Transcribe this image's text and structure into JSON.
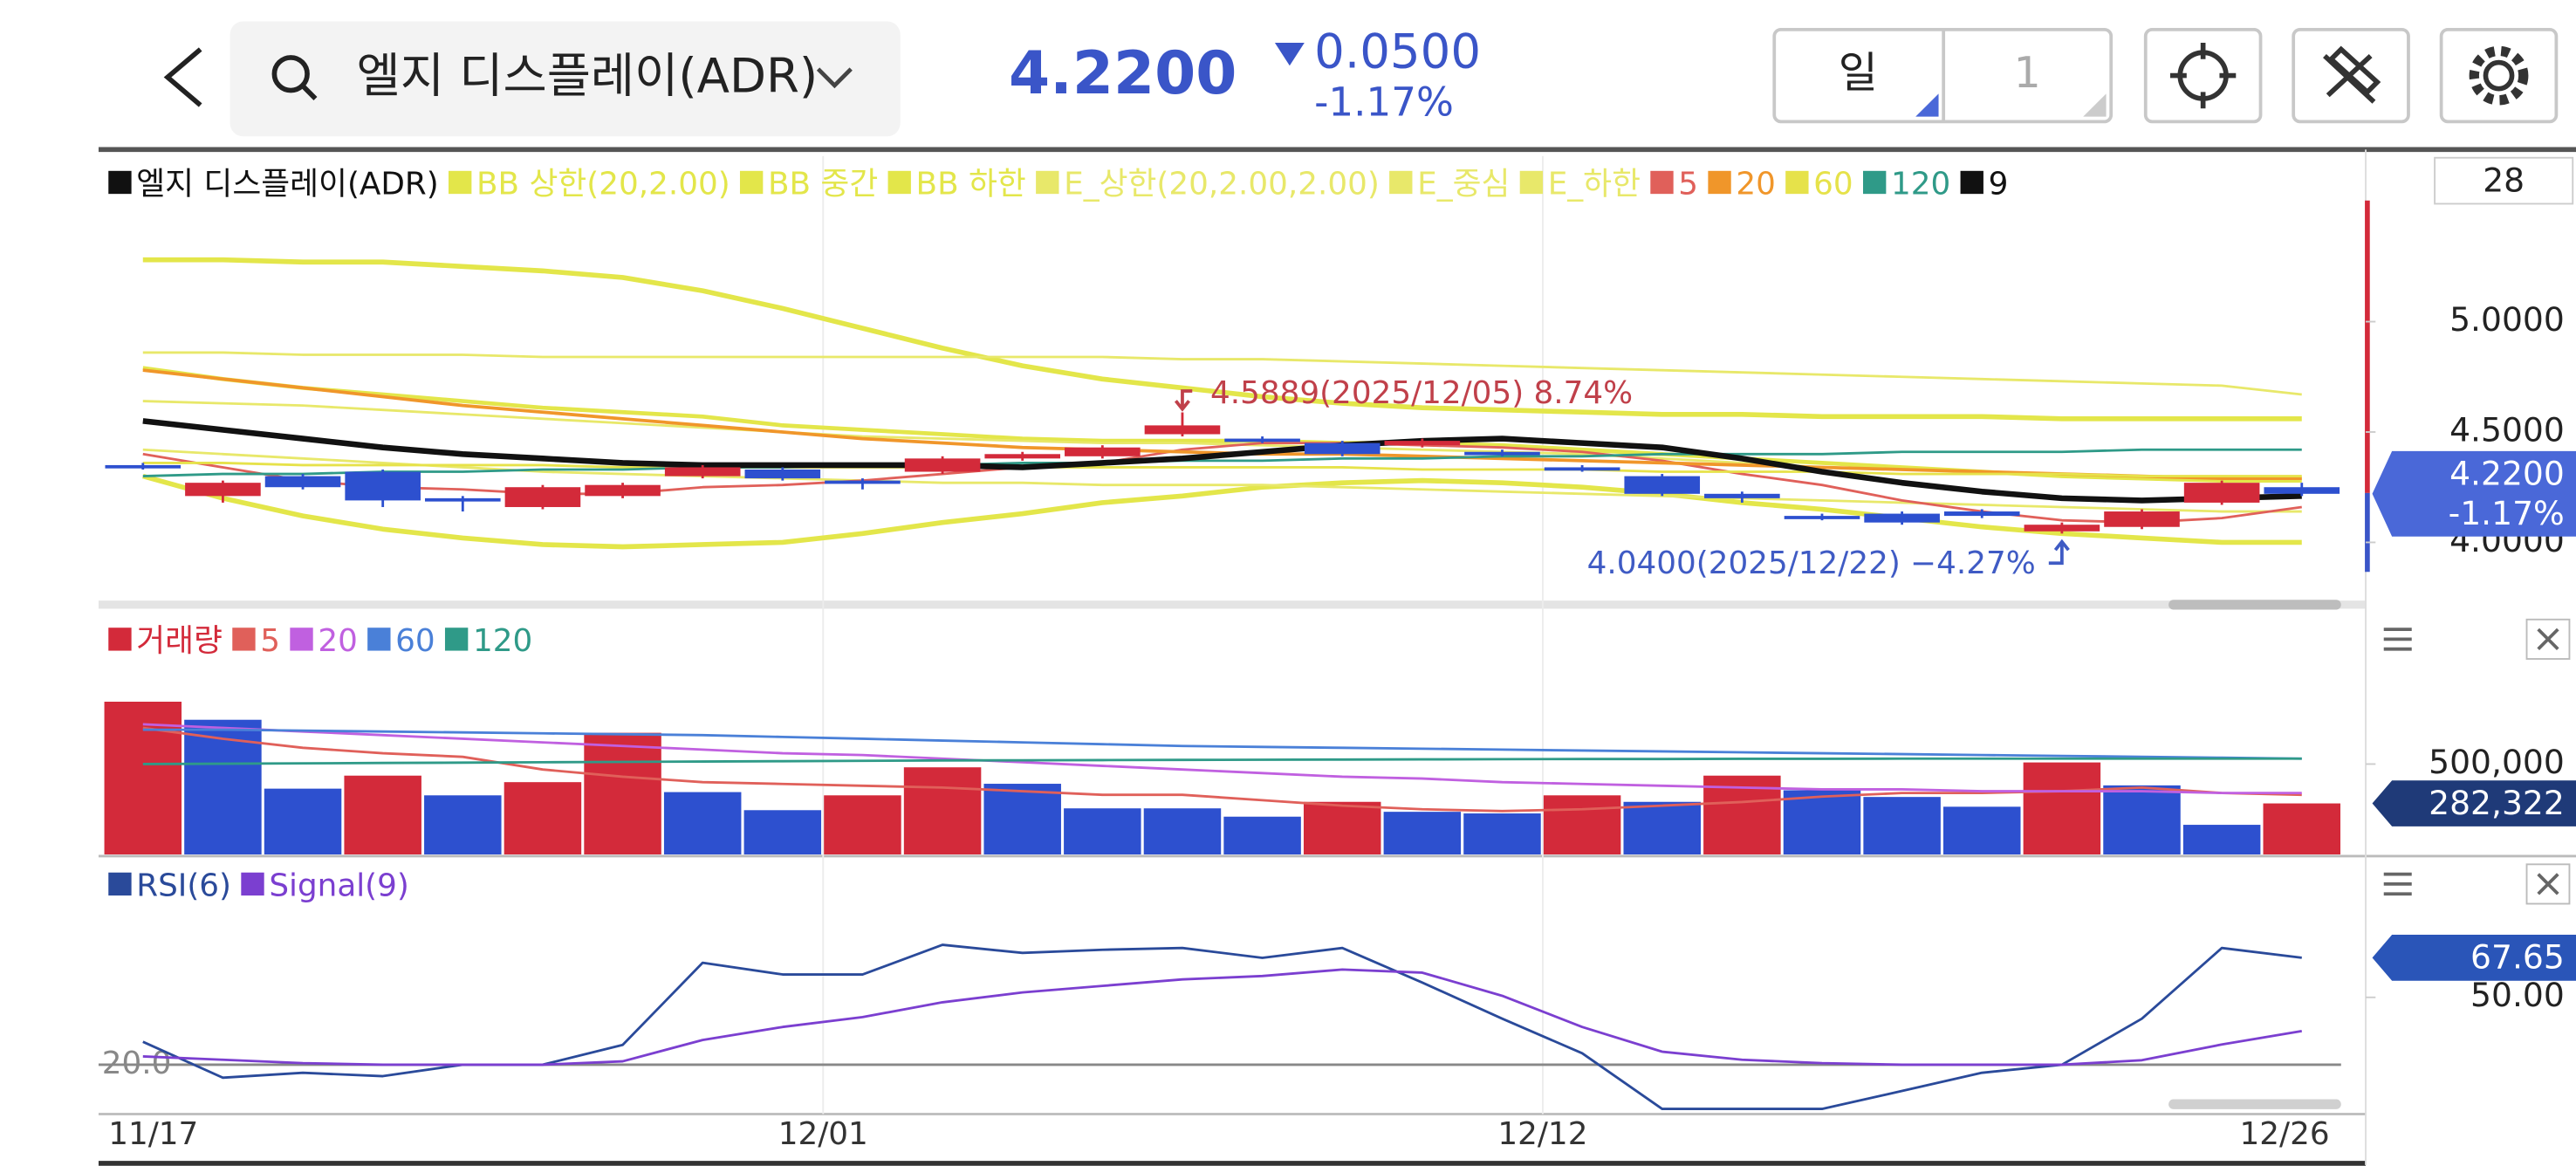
{
  "header": {
    "title": "엘지 디스플레이(ADR)",
    "price": "4.2200",
    "change": "0.0500",
    "change_pct": "-1.17%",
    "period": "일",
    "period_count": "1"
  },
  "count_label": "28",
  "chart_data": [
    {
      "type": "candlestick",
      "candles": {
        "name": "엘지 디스플레이(ADR)",
        "color": "#111111",
        "up_color": "#d32a3a",
        "down_color": "#2d50cf",
        "open": [
          4.35,
          4.21,
          4.3,
          4.32,
          4.2,
          4.16,
          4.21,
          4.3,
          4.33,
          4.28,
          4.32,
          4.38,
          4.39,
          4.49,
          4.47,
          4.45,
          4.44,
          4.41,
          4.34,
          4.3,
          4.22,
          4.12,
          4.13,
          4.14,
          4.05,
          4.07,
          4.18,
          4.25
        ],
        "high": [
          4.36,
          4.28,
          4.31,
          4.33,
          4.21,
          4.26,
          4.27,
          4.35,
          4.34,
          4.29,
          4.39,
          4.41,
          4.44,
          4.5889,
          4.48,
          4.46,
          4.47,
          4.42,
          4.35,
          4.31,
          4.23,
          4.13,
          4.14,
          4.15,
          4.09,
          4.15,
          4.28,
          4.27
        ],
        "low": [
          4.33,
          4.18,
          4.24,
          4.16,
          4.14,
          4.15,
          4.2,
          4.29,
          4.28,
          4.24,
          4.31,
          4.37,
          4.38,
          4.48,
          4.45,
          4.39,
          4.43,
          4.39,
          4.32,
          4.21,
          4.18,
          4.1,
          4.08,
          4.11,
          4.04,
          4.06,
          4.17,
          4.21
        ],
        "close": [
          4.34,
          4.27,
          4.25,
          4.19,
          4.19,
          4.25,
          4.26,
          4.34,
          4.29,
          4.27,
          4.38,
          4.4,
          4.43,
          4.53,
          4.46,
          4.4,
          4.46,
          4.4,
          4.33,
          4.22,
          4.2,
          4.11,
          4.09,
          4.12,
          4.08,
          4.14,
          4.27,
          4.22
        ]
      },
      "series": [
        {
          "name": "BB 상한(20,2.00)",
          "color": "#e3e64a",
          "line_width": 3,
          "values": [
            5.28,
            5.28,
            5.27,
            5.27,
            5.25,
            5.23,
            5.2,
            5.14,
            5.06,
            4.97,
            4.88,
            4.8,
            4.74,
            4.7,
            4.66,
            4.63,
            4.61,
            4.6,
            4.59,
            4.58,
            4.58,
            4.57,
            4.57,
            4.57,
            4.56,
            4.56,
            4.56,
            4.56
          ]
        },
        {
          "name": "BB 중간",
          "color": "#e3e64a",
          "line_width": 2.5,
          "values": [
            4.79,
            4.74,
            4.7,
            4.67,
            4.64,
            4.61,
            4.59,
            4.57,
            4.53,
            4.51,
            4.49,
            4.47,
            4.46,
            4.46,
            4.46,
            4.45,
            4.45,
            4.44,
            4.42,
            4.4,
            4.38,
            4.36,
            4.34,
            4.32,
            4.3,
            4.29,
            4.28,
            4.28
          ]
        },
        {
          "name": "BB 하한",
          "color": "#e3e64a",
          "line_width": 3,
          "values": [
            4.3,
            4.2,
            4.12,
            4.06,
            4.02,
            3.99,
            3.98,
            3.99,
            4.0,
            4.04,
            4.09,
            4.13,
            4.18,
            4.21,
            4.25,
            4.27,
            4.28,
            4.27,
            4.25,
            4.22,
            4.18,
            4.15,
            4.11,
            4.07,
            4.04,
            4.02,
            4.0,
            4.0
          ]
        },
        {
          "name": "E_상한(20,2.00,2.00)",
          "color": "#e8e86a",
          "values": [
            4.86,
            4.86,
            4.85,
            4.85,
            4.85,
            4.84,
            4.84,
            4.84,
            4.84,
            4.84,
            4.84,
            4.84,
            4.84,
            4.83,
            4.83,
            4.82,
            4.81,
            4.8,
            4.79,
            4.78,
            4.77,
            4.76,
            4.75,
            4.74,
            4.73,
            4.72,
            4.71,
            4.67
          ]
        },
        {
          "name": "E_중심",
          "color": "#e8e86a",
          "values": [
            4.64,
            4.63,
            4.62,
            4.6,
            4.58,
            4.56,
            4.54,
            4.52,
            4.5,
            4.48,
            4.47,
            4.46,
            4.45,
            4.45,
            4.44,
            4.43,
            4.42,
            4.41,
            4.4,
            4.38,
            4.36,
            4.34,
            4.33,
            4.32,
            4.31,
            4.3,
            4.29,
            4.29
          ]
        },
        {
          "name": "E_하한",
          "color": "#e8e86a",
          "values": [
            4.42,
            4.4,
            4.38,
            4.36,
            4.34,
            4.32,
            4.31,
            4.3,
            4.29,
            4.28,
            4.27,
            4.27,
            4.26,
            4.26,
            4.26,
            4.25,
            4.24,
            4.23,
            4.22,
            4.21,
            4.2,
            4.19,
            4.18,
            4.17,
            4.16,
            4.15,
            4.14,
            4.14
          ]
        },
        {
          "name": "5",
          "color": "#e0605a",
          "values": [
            4.4,
            4.34,
            4.28,
            4.25,
            4.24,
            4.22,
            4.22,
            4.25,
            4.26,
            4.28,
            4.31,
            4.34,
            4.36,
            4.42,
            4.45,
            4.45,
            4.44,
            4.43,
            4.41,
            4.37,
            4.31,
            4.26,
            4.19,
            4.14,
            4.1,
            4.09,
            4.11,
            4.16
          ]
        },
        {
          "name": "20",
          "color": "#f0962a",
          "line_width": 2,
          "values": [
            4.78,
            4.74,
            4.7,
            4.66,
            4.62,
            4.59,
            4.56,
            4.53,
            4.5,
            4.47,
            4.45,
            4.43,
            4.42,
            4.41,
            4.4,
            4.4,
            4.39,
            4.38,
            4.37,
            4.36,
            4.35,
            4.34,
            4.33,
            4.32,
            4.31,
            4.3,
            4.29,
            4.29
          ]
        },
        {
          "name": "60",
          "color": "#e6e24a",
          "values": [
            4.36,
            4.36,
            4.35,
            4.35,
            4.35,
            4.35,
            4.34,
            4.34,
            4.34,
            4.34,
            4.34,
            4.34,
            4.34,
            4.34,
            4.34,
            4.34,
            4.33,
            4.33,
            4.33,
            4.32,
            4.32,
            4.32,
            4.31,
            4.31,
            4.31,
            4.3,
            4.3,
            4.3
          ]
        },
        {
          "name": "120",
          "color": "#2f9a88",
          "values": [
            4.3,
            4.31,
            4.31,
            4.32,
            4.32,
            4.33,
            4.33,
            4.34,
            4.34,
            4.35,
            4.35,
            4.36,
            4.36,
            4.37,
            4.37,
            4.38,
            4.38,
            4.39,
            4.39,
            4.4,
            4.4,
            4.4,
            4.41,
            4.41,
            4.41,
            4.42,
            4.42,
            4.42
          ]
        },
        {
          "name": "9",
          "color": "#111111",
          "line_width": 3.5,
          "values": [
            4.55,
            4.51,
            4.47,
            4.43,
            4.4,
            4.38,
            4.36,
            4.35,
            4.35,
            4.35,
            4.35,
            4.34,
            4.36,
            4.38,
            4.41,
            4.44,
            4.46,
            4.47,
            4.45,
            4.43,
            4.38,
            4.32,
            4.27,
            4.23,
            4.2,
            4.19,
            4.2,
            4.21
          ]
        }
      ],
      "annotations": [
        {
          "text": "4.5889(2025/12/05) 8.74%",
          "value": 4.5889,
          "color": "#c0404a"
        },
        {
          "text": "4.0400(2025/12/22) −4.27%",
          "value": 4.04,
          "color": "#3f5bc4"
        }
      ],
      "ylim": [
        3.74,
        5.75
      ],
      "yticks": [
        {
          "value": 4,
          "label": "4.0000"
        },
        {
          "value": 4.5,
          "label": "4.5000"
        },
        {
          "value": 5,
          "label": "5.0000"
        }
      ],
      "current_value": 4.22,
      "current_label": "4.2200",
      "current_change": "-1.17%",
      "current_color": "#4a68d8"
    },
    {
      "type": "bar",
      "name": "거래량",
      "color": "#d32a3a",
      "values": [
        845000,
        745000,
        364000,
        436000,
        327000,
        400000,
        673000,
        345000,
        245000,
        327000,
        482000,
        391000,
        255000,
        255000,
        209000,
        291000,
        236000,
        227000,
        327000,
        291000,
        436000,
        355000,
        318000,
        264000,
        509000,
        382000,
        164000,
        282322
      ],
      "bar_colors": [
        "#d32a3a",
        "#2d50cf",
        "#2d50cf",
        "#d32a3a",
        "#2d50cf",
        "#d32a3a",
        "#d32a3a",
        "#2d50cf",
        "#2d50cf",
        "#d32a3a",
        "#d32a3a",
        "#2d50cf",
        "#2d50cf",
        "#2d50cf",
        "#2d50cf",
        "#d32a3a",
        "#2d50cf",
        "#2d50cf",
        "#d32a3a",
        "#2d50cf",
        "#d32a3a",
        "#2d50cf",
        "#2d50cf",
        "#2d50cf",
        "#d32a3a",
        "#2d50cf",
        "#2d50cf",
        "#d32a3a"
      ],
      "series": [
        {
          "name": "5",
          "color": "#e0605a",
          "values": [
            700000,
            640000,
            590000,
            560000,
            540000,
            470000,
            430000,
            400000,
            390000,
            380000,
            370000,
            350000,
            330000,
            330000,
            300000,
            270000,
            250000,
            240000,
            250000,
            270000,
            290000,
            320000,
            340000,
            340000,
            350000,
            370000,
            340000,
            330000
          ]
        },
        {
          "name": "20",
          "color": "#c060e0",
          "values": [
            720000,
            700000,
            680000,
            660000,
            640000,
            620000,
            600000,
            580000,
            560000,
            550000,
            530000,
            510000,
            490000,
            470000,
            450000,
            430000,
            420000,
            400000,
            390000,
            380000,
            370000,
            360000,
            360000,
            350000,
            350000,
            350000,
            340000,
            340000
          ]
        },
        {
          "name": "60",
          "color": "#4a80d8",
          "values": [
            690000,
            690000,
            685000,
            680000,
            675000,
            670000,
            665000,
            660000,
            650000,
            640000,
            630000,
            620000,
            610000,
            600000,
            595000,
            590000,
            585000,
            580000,
            575000,
            570000,
            565000,
            560000,
            555000,
            550000,
            545000,
            540000,
            535000,
            530000
          ]
        },
        {
          "name": "120",
          "color": "#2f9a88",
          "values": [
            500000,
            502000,
            504000,
            506000,
            508000,
            510000,
            512000,
            514000,
            516000,
            518000,
            520000,
            521000,
            522000,
            523000,
            524000,
            525000,
            526000,
            527000,
            528000,
            528000,
            529000,
            529000,
            530000,
            530000,
            530000,
            530000,
            530000,
            530000
          ]
        }
      ],
      "ylim": [
        0,
        1318000
      ],
      "yticks": [
        {
          "value": 500000,
          "label": "500,000"
        }
      ],
      "current_label": "282,322",
      "current_color": "#1f3a78"
    },
    {
      "type": "line",
      "categories": [
        "11/17",
        null,
        null,
        null,
        null,
        null,
        null,
        null,
        null,
        "12/01",
        null,
        null,
        null,
        null,
        null,
        null,
        null,
        null,
        "12/12",
        null,
        null,
        null,
        null,
        null,
        null,
        null,
        null,
        "12/26"
      ],
      "series": [
        {
          "name": "RSI(6)",
          "color": "#2a4a9a",
          "values": [
            30.2,
            14.2,
            16.4,
            14.9,
            20.0,
            20.0,
            28.8,
            65.4,
            60.2,
            60.2,
            73.4,
            69.8,
            71.2,
            72.0,
            67.6,
            72.0,
            56.6,
            40.5,
            25.1,
            0.3,
            0.3,
            0.3,
            8.3,
            16.4,
            20.0,
            40.5,
            72.0,
            67.65
          ]
        },
        {
          "name": "Signal(9)",
          "color": "#7b3fd0",
          "values": [
            23.7,
            22.2,
            20.7,
            20.0,
            20.0,
            20.0,
            21.5,
            31.0,
            36.8,
            41.2,
            47.8,
            52.2,
            55.1,
            58.0,
            59.5,
            62.4,
            61.0,
            50.7,
            36.8,
            25.8,
            22.2,
            20.7,
            20.0,
            20.0,
            20.0,
            22.0,
            29.0,
            35.0
          ]
        }
      ],
      "ylim": [
        -2,
        110
      ],
      "yticks": [
        {
          "value": 20,
          "label": "20.0"
        },
        {
          "value": 50,
          "label": "50.00"
        }
      ],
      "current_label": "67.65",
      "current_color": "#2a55b8"
    }
  ]
}
